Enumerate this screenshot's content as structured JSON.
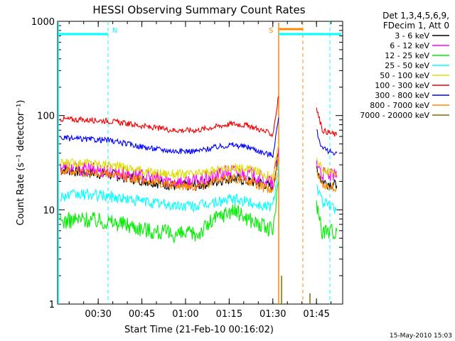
{
  "colors": {
    "energy_bands": [
      "#000000",
      "#ff00ff",
      "#00ee00",
      "#00ffff",
      "#dddd00",
      "#ee0000",
      "#0000ff",
      "#ff8800",
      "#886600"
    ],
    "attenuator_bar": "#00ffff",
    "saa_bar": "#ff8800"
  },
  "header": {
    "title": "HESSI Observing Summary Count Rates",
    "det_line1": "Det 1,3,4,5,6,9,",
    "det_line2": "FDecim 1, Att 0",
    "timestamp": "15-May-2010 15:03"
  },
  "chart_data": {
    "type": "line",
    "title": "HESSI Observing Summary Count Rates",
    "xlabel": "Start Time (21-Feb-10 00:16:02)",
    "ylabel": "Count Rate (s⁻¹ detector⁻¹)",
    "yscale": "log",
    "ylim": [
      1,
      1000
    ],
    "xlim": [
      "00:16:02",
      "01:54:00"
    ],
    "x_ticks": [
      "00:30",
      "00:45",
      "01:00",
      "01:15",
      "01:30",
      "01:45"
    ],
    "y_ticks": [
      "1",
      "10",
      "100",
      "1000"
    ],
    "grid": false,
    "legend_position": "top-right",
    "annotations": [
      {
        "label": "N",
        "time": "00:34",
        "meaning": "night start"
      },
      {
        "label": "S",
        "time": "01:34",
        "meaning": "SAA start"
      }
    ],
    "x": [
      "00:17",
      "00:25",
      "00:33",
      "00:40",
      "00:48",
      "00:56",
      "01:04",
      "01:10",
      "01:16",
      "01:22",
      "01:27",
      "01:30",
      "01:32",
      "01:33",
      "01:45",
      "01:47",
      "01:52"
    ],
    "series": [
      {
        "name": "3 - 6 keV",
        "values": [
          27,
          25,
          24,
          22,
          20,
          18,
          18,
          20,
          22,
          20,
          19,
          17,
          40,
          null,
          28,
          20,
          18
        ]
      },
      {
        "name": "6 - 12 keV",
        "values": [
          29,
          27,
          26,
          24,
          22,
          20,
          20,
          23,
          26,
          24,
          21,
          19,
          45,
          null,
          32,
          24,
          22
        ]
      },
      {
        "name": "12 - 25 keV",
        "values": [
          7.5,
          8,
          7.5,
          7,
          6,
          5.5,
          5.5,
          8,
          10,
          8,
          6.5,
          6,
          20,
          null,
          12,
          6,
          6
        ]
      },
      {
        "name": "25 - 50 keV",
        "values": [
          14,
          14.5,
          14,
          13,
          12,
          11,
          11,
          12,
          13,
          12,
          11,
          11,
          30,
          null,
          18,
          12,
          10
        ]
      },
      {
        "name": "50 - 100 keV",
        "values": [
          31,
          32,
          30,
          28,
          25,
          24,
          24,
          26,
          28,
          27,
          24,
          22,
          50,
          null,
          35,
          26,
          25
        ]
      },
      {
        "name": "100 - 300 keV",
        "values": [
          92,
          90,
          88,
          82,
          75,
          70,
          70,
          76,
          82,
          78,
          68,
          63,
          160,
          null,
          120,
          70,
          62
        ]
      },
      {
        "name": "300 - 800 keV",
        "values": [
          58,
          56,
          55,
          50,
          45,
          42,
          42,
          46,
          49,
          46,
          40,
          38,
          95,
          null,
          70,
          44,
          40
        ]
      },
      {
        "name": "800 - 7000 keV",
        "values": [
          26,
          25,
          24,
          22,
          20,
          18,
          18,
          20,
          22,
          20,
          17,
          16,
          35,
          null,
          25,
          19,
          17
        ]
      },
      {
        "name": "7000 - 20000 keV",
        "values": [
          null,
          null,
          null,
          null,
          null,
          null,
          null,
          null,
          null,
          null,
          null,
          null,
          2,
          null,
          null,
          null,
          null
        ]
      }
    ]
  }
}
